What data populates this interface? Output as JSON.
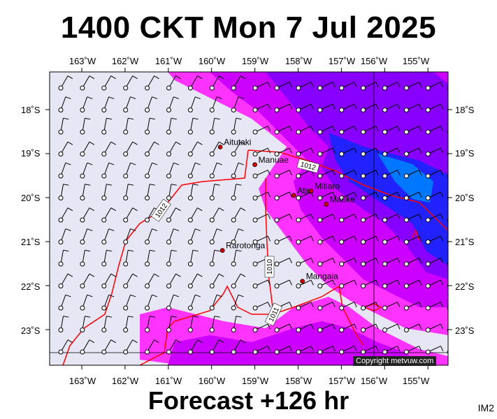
{
  "title": "1400 CKT Mon 7 Jul 2025",
  "footer": "Forecast +126 hr",
  "tag": "IM2",
  "copyright": "Copyright metvuw.com",
  "lon_labels": [
    "163˚W",
    "162˚W",
    "161˚W",
    "160˚W",
    "159˚W",
    "158˚W",
    "157˚W",
    "156˚W",
    "155˚W"
  ],
  "lat_labels": [
    "18˚S",
    "19˚S",
    "20˚S",
    "21˚S",
    "22˚S",
    "23˚S"
  ],
  "places": [
    {
      "name": "Aitutaki",
      "lon": -159.8,
      "lat": -18.85
    },
    {
      "name": "Manuae",
      "lon": -159.0,
      "lat": -19.25
    },
    {
      "name": "Atiu",
      "lon": -158.1,
      "lat": -19.95
    },
    {
      "name": "Mitiaro",
      "lon": -157.7,
      "lat": -19.85
    },
    {
      "name": "Mauke",
      "lon": -157.35,
      "lat": -20.15
    },
    {
      "name": "Rarotonga",
      "lon": -159.75,
      "lat": -21.2
    },
    {
      "name": "Mangaia",
      "lon": -157.9,
      "lat": -21.9
    }
  ],
  "isobars": [
    "1012",
    "1012",
    "1010",
    "1011"
  ],
  "colors": {
    "land_bg": "#e6e6f5",
    "rain_light": "#ff33ff",
    "rain_med": "#cc00ff",
    "rain_heavy": "#6600ff",
    "rain_max": "#0000ff",
    "rain_extreme": "#0066ff",
    "isobar": "#ff0000"
  }
}
